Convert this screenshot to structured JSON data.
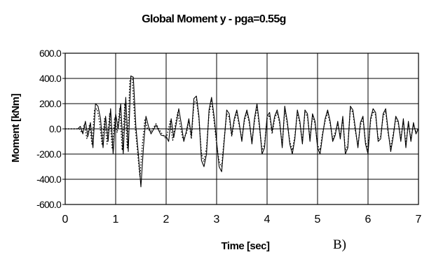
{
  "chart_data": {
    "type": "line",
    "title": "Global Moment y - pga=0.55g",
    "xlabel": "Time [sec]",
    "ylabel": "Moment [kNm]",
    "xlim": [
      0,
      7
    ],
    "ylim": [
      -600,
      600
    ],
    "x_ticks": [
      "0",
      "1",
      "2",
      "3",
      "4",
      "5",
      "6",
      "7"
    ],
    "y_ticks": [
      "600.0",
      "400.0",
      "200.0",
      "0.0",
      "-200.0",
      "-400.0",
      "-600.0"
    ],
    "grid": true,
    "series": [
      {
        "style": "solid",
        "points": [
          [
            0.0,
            0
          ],
          [
            0.25,
            0
          ],
          [
            0.3,
            20
          ],
          [
            0.35,
            -40
          ],
          [
            0.4,
            60
          ],
          [
            0.45,
            -60
          ],
          [
            0.5,
            50
          ],
          [
            0.55,
            -150
          ],
          [
            0.6,
            200
          ],
          [
            0.65,
            180
          ],
          [
            0.7,
            80
          ],
          [
            0.75,
            -150
          ],
          [
            0.8,
            100
          ],
          [
            0.85,
            -100
          ],
          [
            0.9,
            160
          ],
          [
            0.95,
            -200
          ],
          [
            1.0,
            120
          ],
          [
            1.05,
            0
          ],
          [
            1.1,
            200
          ],
          [
            1.15,
            -200
          ],
          [
            1.2,
            250
          ],
          [
            1.25,
            -180
          ],
          [
            1.3,
            420
          ],
          [
            1.35,
            410
          ],
          [
            1.4,
            20
          ],
          [
            1.45,
            -200
          ],
          [
            1.5,
            -460
          ],
          [
            1.55,
            -150
          ],
          [
            1.6,
            100
          ],
          [
            1.65,
            20
          ],
          [
            1.7,
            -40
          ],
          [
            1.8,
            30
          ],
          [
            1.9,
            -50
          ],
          [
            2.0,
            -60
          ],
          [
            2.05,
            -100
          ],
          [
            2.1,
            80
          ],
          [
            2.15,
            -70
          ],
          [
            2.2,
            40
          ],
          [
            2.25,
            160
          ],
          [
            2.3,
            40
          ],
          [
            2.35,
            -100
          ],
          [
            2.4,
            -20
          ],
          [
            2.45,
            80
          ],
          [
            2.5,
            -60
          ],
          [
            2.55,
            240
          ],
          [
            2.6,
            260
          ],
          [
            2.65,
            100
          ],
          [
            2.7,
            -250
          ],
          [
            2.75,
            -300
          ],
          [
            2.8,
            -200
          ],
          [
            2.85,
            150
          ],
          [
            2.9,
            250
          ],
          [
            2.95,
            100
          ],
          [
            3.0,
            -100
          ],
          [
            3.05,
            -300
          ],
          [
            3.1,
            -340
          ],
          [
            3.15,
            -100
          ],
          [
            3.2,
            150
          ],
          [
            3.25,
            120
          ],
          [
            3.3,
            -50
          ],
          [
            3.35,
            80
          ],
          [
            3.4,
            150
          ],
          [
            3.45,
            40
          ],
          [
            3.5,
            -100
          ],
          [
            3.55,
            80
          ],
          [
            3.6,
            150
          ],
          [
            3.65,
            60
          ],
          [
            3.7,
            -120
          ],
          [
            3.75,
            80
          ],
          [
            3.8,
            200
          ],
          [
            3.85,
            30
          ],
          [
            3.9,
            -200
          ],
          [
            3.95,
            -150
          ],
          [
            4.0,
            100
          ],
          [
            4.05,
            130
          ],
          [
            4.1,
            -20
          ],
          [
            4.15,
            100
          ],
          [
            4.2,
            150
          ],
          [
            4.25,
            60
          ],
          [
            4.3,
            -150
          ],
          [
            4.35,
            180
          ],
          [
            4.4,
            60
          ],
          [
            4.45,
            -120
          ],
          [
            4.5,
            -200
          ],
          [
            4.55,
            -80
          ],
          [
            4.6,
            150
          ],
          [
            4.65,
            60
          ],
          [
            4.7,
            -120
          ],
          [
            4.75,
            150
          ],
          [
            4.8,
            120
          ],
          [
            4.85,
            -100
          ],
          [
            4.9,
            120
          ],
          [
            4.95,
            60
          ],
          [
            5.0,
            -150
          ],
          [
            5.05,
            -200
          ],
          [
            5.1,
            -50
          ],
          [
            5.15,
            80
          ],
          [
            5.2,
            150
          ],
          [
            5.25,
            60
          ],
          [
            5.3,
            -100
          ],
          [
            5.35,
            -50
          ],
          [
            5.4,
            60
          ],
          [
            5.45,
            -80
          ],
          [
            5.5,
            100
          ],
          [
            5.55,
            -200
          ],
          [
            5.6,
            -150
          ],
          [
            5.65,
            180
          ],
          [
            5.7,
            150
          ],
          [
            5.75,
            0
          ],
          [
            5.8,
            -150
          ],
          [
            5.85,
            50
          ],
          [
            5.9,
            100
          ],
          [
            5.95,
            -120
          ],
          [
            6.0,
            -200
          ],
          [
            6.05,
            80
          ],
          [
            6.1,
            160
          ],
          [
            6.15,
            130
          ],
          [
            6.2,
            -100
          ],
          [
            6.25,
            -80
          ],
          [
            6.3,
            120
          ],
          [
            6.35,
            160
          ],
          [
            6.4,
            -20
          ],
          [
            6.45,
            -180
          ],
          [
            6.5,
            -60
          ],
          [
            6.55,
            100
          ],
          [
            6.6,
            60
          ],
          [
            6.65,
            -100
          ],
          [
            6.7,
            80
          ],
          [
            6.75,
            -150
          ],
          [
            6.8,
            60
          ],
          [
            6.85,
            -100
          ],
          [
            6.9,
            50
          ],
          [
            6.95,
            -40
          ],
          [
            7.0,
            0
          ]
        ]
      },
      {
        "style": "dotted",
        "points": [
          [
            0.0,
            0
          ],
          [
            0.28,
            0
          ],
          [
            0.33,
            -30
          ],
          [
            0.38,
            40
          ],
          [
            0.43,
            -80
          ],
          [
            0.48,
            30
          ],
          [
            0.53,
            -120
          ],
          [
            0.58,
            150
          ],
          [
            0.63,
            160
          ],
          [
            0.68,
            60
          ],
          [
            0.73,
            -130
          ],
          [
            0.78,
            80
          ],
          [
            0.83,
            -120
          ],
          [
            0.88,
            120
          ],
          [
            0.93,
            -160
          ],
          [
            0.98,
            90
          ],
          [
            1.03,
            -30
          ],
          [
            1.08,
            160
          ],
          [
            1.13,
            -170
          ],
          [
            1.18,
            200
          ],
          [
            1.23,
            -150
          ],
          [
            1.28,
            380
          ],
          [
            1.33,
            390
          ],
          [
            1.38,
            40
          ],
          [
            1.43,
            -170
          ],
          [
            1.48,
            -380
          ],
          [
            1.53,
            -120
          ],
          [
            1.58,
            80
          ],
          [
            1.63,
            0
          ],
          [
            1.7,
            -20
          ],
          [
            1.8,
            40
          ],
          [
            1.9,
            -30
          ],
          [
            2.0,
            -80
          ],
          [
            2.08,
            60
          ],
          [
            2.13,
            -90
          ],
          [
            2.18,
            30
          ],
          [
            2.23,
            130
          ],
          [
            2.28,
            20
          ],
          [
            2.33,
            -80
          ],
          [
            2.4,
            -40
          ],
          [
            2.45,
            60
          ],
          [
            2.5,
            -80
          ],
          [
            2.55,
            200
          ],
          [
            2.6,
            230
          ],
          [
            2.65,
            80
          ],
          [
            2.7,
            -200
          ],
          [
            2.75,
            -260
          ],
          [
            2.8,
            -150
          ],
          [
            2.85,
            120
          ],
          [
            2.9,
            220
          ],
          [
            2.95,
            60
          ],
          [
            3.0,
            -120
          ],
          [
            3.05,
            -260
          ],
          [
            3.1,
            -300
          ],
          [
            3.15,
            -80
          ],
          [
            3.2,
            120
          ],
          [
            3.25,
            90
          ],
          [
            3.3,
            -60
          ],
          [
            3.35,
            60
          ],
          [
            3.4,
            130
          ],
          [
            3.45,
            20
          ],
          [
            3.5,
            -80
          ],
          [
            3.55,
            60
          ],
          [
            3.6,
            130
          ],
          [
            3.65,
            40
          ],
          [
            3.7,
            -100
          ],
          [
            3.75,
            60
          ],
          [
            3.8,
            170
          ],
          [
            3.85,
            10
          ],
          [
            3.9,
            -170
          ],
          [
            3.95,
            -120
          ],
          [
            4.0,
            80
          ],
          [
            4.05,
            110
          ],
          [
            4.1,
            -40
          ],
          [
            4.15,
            80
          ],
          [
            4.2,
            130
          ],
          [
            4.25,
            40
          ],
          [
            4.3,
            -130
          ],
          [
            4.35,
            150
          ],
          [
            4.4,
            40
          ],
          [
            4.45,
            -100
          ],
          [
            4.5,
            -170
          ],
          [
            4.55,
            -60
          ],
          [
            4.6,
            130
          ],
          [
            4.65,
            40
          ],
          [
            4.7,
            -100
          ],
          [
            4.75,
            130
          ],
          [
            4.8,
            100
          ],
          [
            4.85,
            -80
          ],
          [
            4.9,
            100
          ],
          [
            4.95,
            40
          ],
          [
            5.0,
            -130
          ],
          [
            5.05,
            -170
          ],
          [
            5.1,
            -30
          ],
          [
            5.15,
            60
          ],
          [
            5.2,
            130
          ],
          [
            5.25,
            40
          ],
          [
            5.3,
            -80
          ],
          [
            5.35,
            -30
          ],
          [
            5.4,
            40
          ],
          [
            5.45,
            -60
          ],
          [
            5.5,
            80
          ],
          [
            5.55,
            -170
          ],
          [
            5.6,
            -130
          ],
          [
            5.65,
            160
          ],
          [
            5.7,
            130
          ],
          [
            5.75,
            -20
          ],
          [
            5.8,
            -130
          ],
          [
            5.85,
            30
          ],
          [
            5.9,
            80
          ],
          [
            5.95,
            -100
          ],
          [
            6.0,
            -170
          ],
          [
            6.05,
            60
          ],
          [
            6.1,
            140
          ],
          [
            6.15,
            110
          ],
          [
            6.2,
            -80
          ],
          [
            6.25,
            -60
          ],
          [
            6.3,
            100
          ],
          [
            6.35,
            140
          ],
          [
            6.4,
            -40
          ],
          [
            6.45,
            -150
          ],
          [
            6.5,
            -40
          ],
          [
            6.55,
            80
          ],
          [
            6.6,
            40
          ],
          [
            6.65,
            -80
          ],
          [
            6.7,
            60
          ],
          [
            6.75,
            -120
          ],
          [
            6.8,
            40
          ],
          [
            6.85,
            -80
          ],
          [
            6.9,
            30
          ],
          [
            6.95,
            -20
          ],
          [
            7.0,
            0
          ]
        ]
      }
    ]
  },
  "panel_label": "B)",
  "colors": {
    "line": "#000000",
    "background": "#ffffff"
  }
}
